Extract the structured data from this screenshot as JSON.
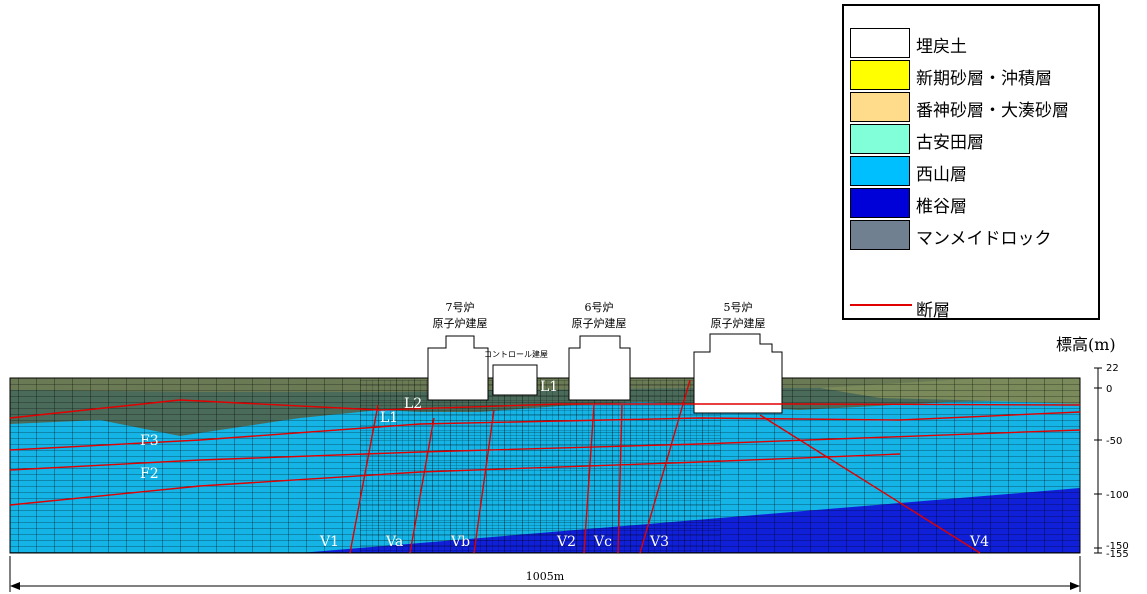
{
  "legend": {
    "items": [
      {
        "label": "埋戻土",
        "color": "#ffffff"
      },
      {
        "label": "新期砂層・沖積層",
        "color": "#ffff00"
      },
      {
        "label": "番神砂層・大湊砂層",
        "color": "#ffdc8c"
      },
      {
        "label": "古安田層",
        "color": "#80ffd8"
      },
      {
        "label": "西山層",
        "color": "#00bfff"
      },
      {
        "label": "椎谷層",
        "color": "#0000d8"
      },
      {
        "label": "マンメイドロック",
        "color": "#708090"
      }
    ],
    "fault_label": "断層",
    "fault_color": "#e00000"
  },
  "buildings": [
    {
      "line1": "7号炉",
      "line2": "原子炉建屋"
    },
    {
      "line1": "6号炉",
      "line2": "原子炉建屋"
    },
    {
      "line1": "5号炉",
      "line2": "原子炉建屋"
    }
  ],
  "control_building": "コントロール建屋",
  "axis": {
    "unit": "標高(m)",
    "ticks": [
      "22",
      "0",
      "-50",
      "-100",
      "-150",
      "-155"
    ]
  },
  "faults": {
    "horizontal": [
      "F3",
      "F2",
      "L1",
      "L2",
      "L1"
    ],
    "vertical": [
      "V1",
      "Va",
      "Vb",
      "V2",
      "Vc",
      "V3",
      "V4"
    ]
  },
  "dimension": "1005m",
  "colors": {
    "nishiyama": "#14b4e6",
    "shiiya": "#1020d8",
    "upper": "#4a6a5a",
    "mesh": "#000000"
  }
}
